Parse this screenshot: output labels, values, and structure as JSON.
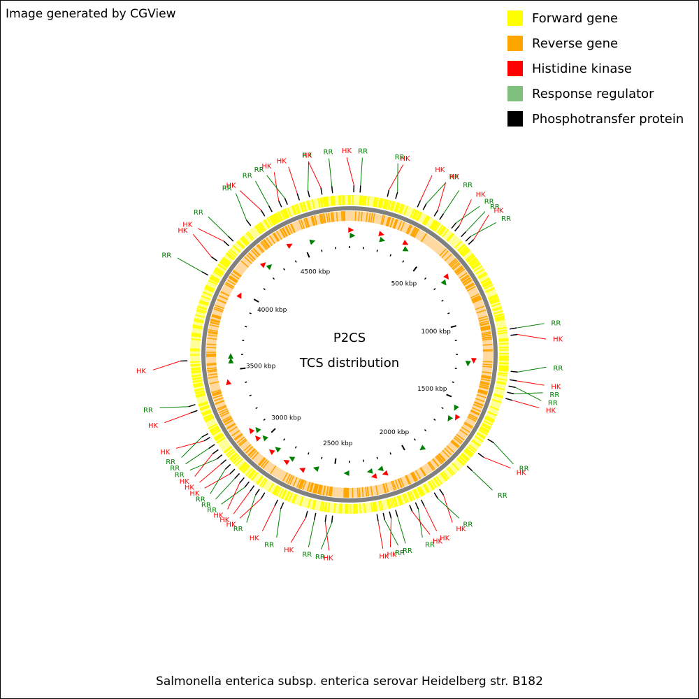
{
  "credit": "Image generated by CGView",
  "organism": "Salmonella enterica subsp. enterica serovar Heidelberg str. B182",
  "center": {
    "line1": "P2CS",
    "line2": "TCS distribution"
  },
  "legend": [
    {
      "label": "Forward gene",
      "color": "#ffff00"
    },
    {
      "label": "Reverse gene",
      "color": "#ffa500"
    },
    {
      "label": "Histidine kinase",
      "color": "#ff0000"
    },
    {
      "label": "Response regulator",
      "color": "#7fc07f"
    },
    {
      "label": "Phosphotransfer protein",
      "color": "#000000"
    }
  ],
  "colors": {
    "hk": "#ff0000",
    "rr": "#008000",
    "backbone": "#808080",
    "tick": "#000000"
  },
  "genome_kbp": 4800,
  "ruler_labels": [
    "500 kbp",
    "1000 kbp",
    "1500 kbp",
    "2000 kbp",
    "2500 kbp",
    "3000 kbp",
    "3500 kbp",
    "4000 kbp",
    "4500 kbp"
  ],
  "features": [
    {
      "type": "HK",
      "pos_kbp": 20
    },
    {
      "type": "RR",
      "pos_kbp": 50
    },
    {
      "type": "HK",
      "pos_kbp": 180
    },
    {
      "type": "RR",
      "pos_kbp": 220
    },
    {
      "type": "HK",
      "pos_kbp": 330
    },
    {
      "type": "RR",
      "pos_kbp": 360
    },
    {
      "type": "HK",
      "pos_kbp": 420
    },
    {
      "type": "RR",
      "pos_kbp": 450
    },
    {
      "type": "RR",
      "pos_kbp": 520
    },
    {
      "type": "HK",
      "pos_kbp": 540
    },
    {
      "type": "RR",
      "pos_kbp": 580
    },
    {
      "type": "RR",
      "pos_kbp": 610
    },
    {
      "type": "HK",
      "pos_kbp": 630
    },
    {
      "type": "RR",
      "pos_kbp": 1080
    },
    {
      "type": "HK",
      "pos_kbp": 1110
    },
    {
      "type": "RR",
      "pos_kbp": 1280
    },
    {
      "type": "HK",
      "pos_kbp": 1320
    },
    {
      "type": "RR",
      "pos_kbp": 1350
    },
    {
      "type": "RR",
      "pos_kbp": 1380
    },
    {
      "type": "HK",
      "pos_kbp": 1410
    },
    {
      "type": "RR",
      "pos_kbp": 1620
    },
    {
      "type": "HK",
      "pos_kbp": 1700
    },
    {
      "type": "RR",
      "pos_kbp": 1780
    },
    {
      "type": "HK",
      "pos_kbp": 1950
    },
    {
      "type": "RR",
      "pos_kbp": 1980
    },
    {
      "type": "HK",
      "pos_kbp": 2050
    },
    {
      "type": "RR",
      "pos_kbp": 2080
    },
    {
      "type": "HK",
      "pos_kbp": 2110
    },
    {
      "type": "RR",
      "pos_kbp": 2180
    },
    {
      "type": "HK",
      "pos_kbp": 2210
    },
    {
      "type": "RR",
      "pos_kbp": 2240
    },
    {
      "type": "HK",
      "pos_kbp": 2270
    },
    {
      "type": "RR",
      "pos_kbp": 2480
    },
    {
      "type": "HK",
      "pos_kbp": 2510
    },
    {
      "type": "RR",
      "pos_kbp": 2560
    },
    {
      "type": "HK",
      "pos_kbp": 2600
    },
    {
      "type": "RR",
      "pos_kbp": 2720
    },
    {
      "type": "HK",
      "pos_kbp": 2750
    },
    {
      "type": "HK",
      "pos_kbp": 2820
    },
    {
      "type": "RR",
      "pos_kbp": 2850
    },
    {
      "type": "HK",
      "pos_kbp": 2880
    },
    {
      "type": "RR",
      "pos_kbp": 2910
    },
    {
      "type": "HK",
      "pos_kbp": 2940
    },
    {
      "type": "RR",
      "pos_kbp": 2970
    },
    {
      "type": "HK",
      "pos_kbp": 3000
    },
    {
      "type": "RR",
      "pos_kbp": 3030
    },
    {
      "type": "HK",
      "pos_kbp": 3060
    },
    {
      "type": "RR",
      "pos_kbp": 3090
    },
    {
      "type": "HK",
      "pos_kbp": 3120
    },
    {
      "type": "RR",
      "pos_kbp": 3150
    },
    {
      "type": "HK",
      "pos_kbp": 3190
    },
    {
      "type": "RR",
      "pos_kbp": 3210
    },
    {
      "type": "HK",
      "pos_kbp": 3330
    },
    {
      "type": "RR",
      "pos_kbp": 3360
    },
    {
      "type": "HK",
      "pos_kbp": 3570
    },
    {
      "type": "RR",
      "pos_kbp": 3990
    },
    {
      "type": "HK",
      "pos_kbp": 4070
    },
    {
      "type": "HK",
      "pos_kbp": 4160
    },
    {
      "type": "RR",
      "pos_kbp": 4190
    },
    {
      "type": "RR",
      "pos_kbp": 4300
    },
    {
      "type": "HK",
      "pos_kbp": 4380
    },
    {
      "type": "RR",
      "pos_kbp": 4420
    },
    {
      "type": "HK",
      "pos_kbp": 4470
    },
    {
      "type": "RR",
      "pos_kbp": 4500
    },
    {
      "type": "HK",
      "pos_kbp": 4560
    },
    {
      "type": "RR",
      "pos_kbp": 4610
    },
    {
      "type": "HK",
      "pos_kbp": 4670
    },
    {
      "type": "RR",
      "pos_kbp": 4720
    }
  ],
  "inner_markers": [
    {
      "type": "HK",
      "pos_kbp": 10
    },
    {
      "type": "RR",
      "pos_kbp": 20
    },
    {
      "type": "HK",
      "pos_kbp": 200
    },
    {
      "type": "RR",
      "pos_kbp": 215
    },
    {
      "type": "HK",
      "pos_kbp": 360
    },
    {
      "type": "RR",
      "pos_kbp": 380
    },
    {
      "type": "HK",
      "pos_kbp": 690
    },
    {
      "type": "RR",
      "pos_kbp": 710
    },
    {
      "type": "HK",
      "pos_kbp": 1240
    },
    {
      "type": "RR",
      "pos_kbp": 1260
    },
    {
      "type": "RR",
      "pos_kbp": 1560
    },
    {
      "type": "HK",
      "pos_kbp": 1610
    },
    {
      "type": "RR",
      "pos_kbp": 1640
    },
    {
      "type": "RR",
      "pos_kbp": 1900
    },
    {
      "type": "HK",
      "pos_kbp": 2180
    },
    {
      "type": "RR",
      "pos_kbp": 2200
    },
    {
      "type": "HK",
      "pos_kbp": 2250
    },
    {
      "type": "RR",
      "pos_kbp": 2270
    },
    {
      "type": "RR",
      "pos_kbp": 2420
    },
    {
      "type": "RR",
      "pos_kbp": 2620
    },
    {
      "type": "HK",
      "pos_kbp": 2700
    },
    {
      "type": "RR",
      "pos_kbp": 2790
    },
    {
      "type": "HK",
      "pos_kbp": 2810
    },
    {
      "type": "RR",
      "pos_kbp": 2900
    },
    {
      "type": "HK",
      "pos_kbp": 2920
    },
    {
      "type": "RR",
      "pos_kbp": 3010
    },
    {
      "type": "HK",
      "pos_kbp": 3040
    },
    {
      "type": "RR",
      "pos_kbp": 3080
    },
    {
      "type": "HK",
      "pos_kbp": 3100
    },
    {
      "type": "HK",
      "pos_kbp": 3430
    },
    {
      "type": "RR",
      "pos_kbp": 3560
    },
    {
      "type": "RR",
      "pos_kbp": 3590
    },
    {
      "type": "HK",
      "pos_kbp": 3980
    },
    {
      "type": "HK",
      "pos_kbp": 4220
    },
    {
      "type": "RR",
      "pos_kbp": 4240
    },
    {
      "type": "HK",
      "pos_kbp": 4420
    },
    {
      "type": "RR",
      "pos_kbp": 4560
    }
  ]
}
